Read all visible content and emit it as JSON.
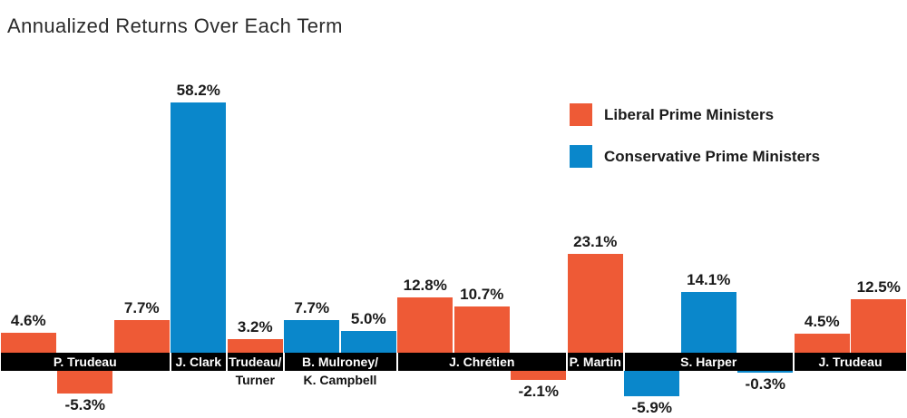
{
  "title": "Annualized Returns Over Each Term",
  "legend": {
    "items": [
      {
        "label": "Liberal Prime Ministers",
        "party": "Liberal",
        "color": "#EE5A36"
      },
      {
        "label": "Conservative Prime Ministers",
        "party": "Conservative",
        "color": "#0A87CB"
      }
    ]
  },
  "chart_data": {
    "type": "bar",
    "title": "Annualized Returns Over Each Term",
    "unit": "%",
    "ylim": [
      -5.9,
      58.2
    ],
    "grid": false,
    "legend_position": "top-right",
    "axis_band_color": "#000000",
    "series_colors": {
      "Liberal": "#EE5A36",
      "Conservative": "#0A87CB"
    },
    "bars": [
      {
        "value": 4.6,
        "label": "4.6%",
        "party": "Liberal",
        "term": "P. Trudeau"
      },
      {
        "value": -5.3,
        "label": "-5.3%",
        "party": "Liberal",
        "term": "P. Trudeau"
      },
      {
        "value": 7.7,
        "label": "7.7%",
        "party": "Liberal",
        "term": "P. Trudeau"
      },
      {
        "value": 58.2,
        "label": "58.2%",
        "party": "Conservative",
        "term": "J. Clark"
      },
      {
        "value": 3.2,
        "label": "3.2%",
        "party": "Liberal",
        "term": "Trudeau/Turner"
      },
      {
        "value": 7.7,
        "label": "7.7%",
        "party": "Conservative",
        "term": "B. Mulroney/K. Campbell"
      },
      {
        "value": 5.0,
        "label": "5.0%",
        "party": "Conservative",
        "term": "B. Mulroney/K. Campbell"
      },
      {
        "value": 12.8,
        "label": "12.8%",
        "party": "Liberal",
        "term": "J. Chrétien"
      },
      {
        "value": 10.7,
        "label": "10.7%",
        "party": "Liberal",
        "term": "J. Chrétien"
      },
      {
        "value": -2.1,
        "label": "-2.1%",
        "party": "Liberal",
        "term": "J. Chrétien"
      },
      {
        "value": 23.1,
        "label": "23.1%",
        "party": "Liberal",
        "term": "P. Martin"
      },
      {
        "value": -5.9,
        "label": "-5.9%",
        "party": "Conservative",
        "term": "S. Harper"
      },
      {
        "value": 14.1,
        "label": "14.1%",
        "party": "Conservative",
        "term": "S. Harper"
      },
      {
        "value": -0.3,
        "label": "-0.3%",
        "party": "Conservative",
        "term": "S. Harper"
      },
      {
        "value": 4.5,
        "label": "4.5%",
        "party": "Liberal",
        "term": "J. Trudeau"
      },
      {
        "value": 12.5,
        "label": "12.5%",
        "party": "Liberal",
        "term": "J. Trudeau"
      }
    ],
    "term_groups": [
      {
        "label": "P. Trudeau",
        "sub_label": "",
        "first_bar": 0,
        "last_bar": 2
      },
      {
        "label": "J. Clark",
        "sub_label": "",
        "first_bar": 3,
        "last_bar": 3
      },
      {
        "label": "Trudeau/",
        "sub_label": "Turner",
        "first_bar": 4,
        "last_bar": 4
      },
      {
        "label": "B. Mulroney/",
        "sub_label": "K. Campbell",
        "first_bar": 5,
        "last_bar": 6
      },
      {
        "label": "J. Chrétien",
        "sub_label": "",
        "first_bar": 7,
        "last_bar": 9
      },
      {
        "label": "P. Martin",
        "sub_label": "",
        "first_bar": 10,
        "last_bar": 10
      },
      {
        "label": "S. Harper",
        "sub_label": "",
        "first_bar": 11,
        "last_bar": 13
      },
      {
        "label": "J. Trudeau",
        "sub_label": "",
        "first_bar": 14,
        "last_bar": 15
      }
    ]
  }
}
